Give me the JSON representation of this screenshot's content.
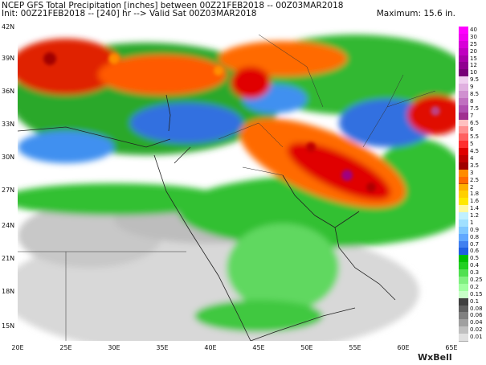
{
  "header": {
    "line1": "NCEP GFS Total Precipitation [inches] between 00Z21FEB2018 -- 00Z03MAR2018",
    "line2": "Init: 00Z21FEB2018 -- [240] hr --> Valid Sat 00Z03MAR2018",
    "maximum": "Maximum: 15.6 in."
  },
  "axes": {
    "lat_labels": [
      "42N",
      "39N",
      "36N",
      "33N",
      "30N",
      "27N",
      "24N",
      "21N",
      "18N",
      "15N"
    ],
    "lon_labels": [
      "20E",
      "25E",
      "30E",
      "35E",
      "40E",
      "45E",
      "50E",
      "55E",
      "60E",
      "65E"
    ]
  },
  "legend": {
    "levels": [
      "40",
      "30",
      "25",
      "20",
      "15",
      "12",
      "10",
      "9.5",
      "9",
      "8.5",
      "8",
      "7.5",
      "7",
      "6.5",
      "6",
      "5.5",
      "5",
      "4.5",
      "4",
      "3.5",
      "3",
      "2.5",
      "2",
      "1.8",
      "1.6",
      "1.4",
      "1.2",
      "1",
      "0.9",
      "0.8",
      "0.7",
      "0.6",
      "0.5",
      "0.4",
      "0.3",
      "0.25",
      "0.2",
      "0.15",
      "0.1",
      "0.08",
      "0.06",
      "0.04",
      "0.02",
      "0.01"
    ],
    "colors": [
      "#ff00ff",
      "#f000f0",
      "#d800d8",
      "#c000c0",
      "#a800a8",
      "#900090",
      "#780078",
      "#f0d0f0",
      "#e0b0e0",
      "#d090d0",
      "#c070c0",
      "#b050b0",
      "#a03090",
      "#ffc0c0",
      "#ff9090",
      "#ff6060",
      "#ff3030",
      "#e00000",
      "#c00000",
      "#a00000",
      "#ff8c00",
      "#ff6a00",
      "#ffb000",
      "#ffd000",
      "#ffe800",
      "#fff8a0",
      "#c0f0ff",
      "#a0e0ff",
      "#80c8ff",
      "#60a8ff",
      "#4080f0",
      "#2060e0",
      "#00c000",
      "#20d020",
      "#50e050",
      "#80f080",
      "#a0ffa0",
      "#c8ffc8",
      "#404040",
      "#606060",
      "#808080",
      "#a0a0a0",
      "#c0c0c0",
      "#e0e0e0"
    ]
  },
  "brand": "WxBell"
}
